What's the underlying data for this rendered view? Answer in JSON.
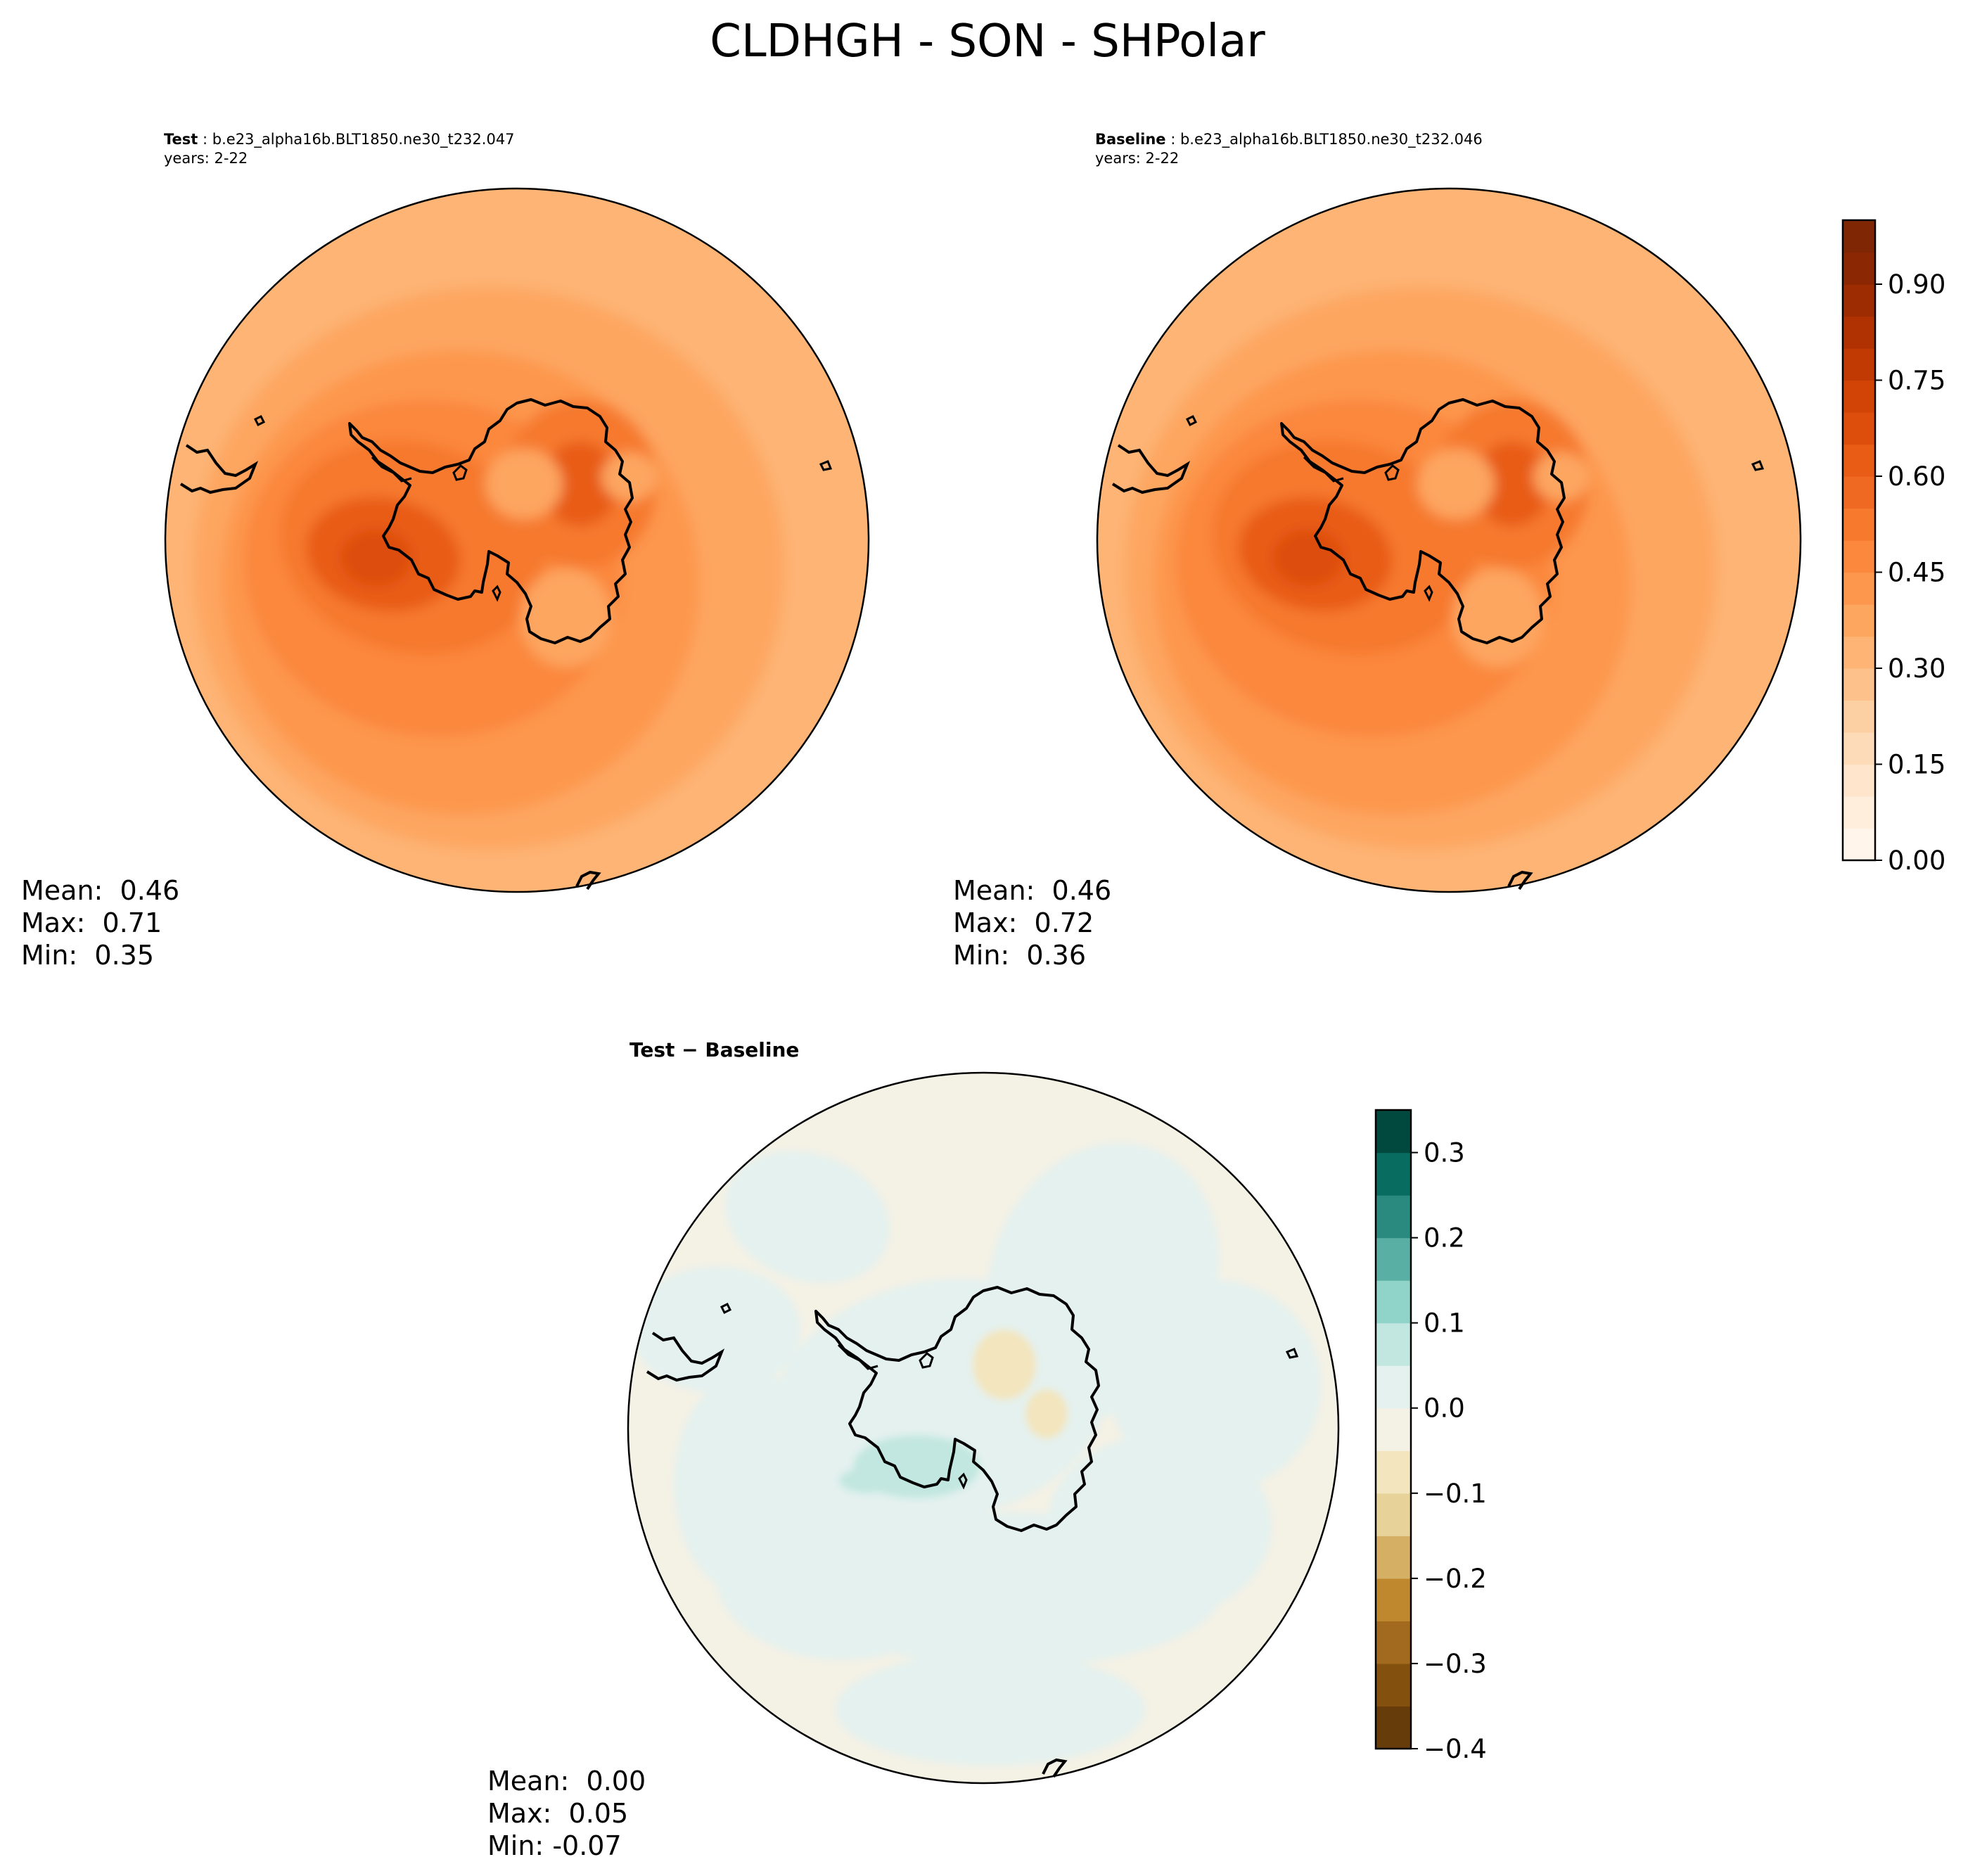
{
  "figure_title": "CLDHGH - SON - SHPolar",
  "panels": {
    "test": {
      "label": "Test",
      "case": "b.e23_alpha16b.BLT1850.ne30_t232.047",
      "years": "years: 2-22",
      "mean_label": "Mean:",
      "mean": "0.46",
      "max_label": "Max:",
      "max": "0.71",
      "min_label": "Min:",
      "min": "0.35"
    },
    "baseline": {
      "label": "Baseline",
      "case": "b.e23_alpha16b.BLT1850.ne30_t232.046",
      "years": "years: 2-22",
      "mean_label": "Mean:",
      "mean": "0.46",
      "max_label": "Max:",
      "max": "0.72",
      "min_label": "Min:",
      "min": "0.36"
    },
    "diff": {
      "label": "Test − Baseline",
      "mean_label": "Mean:",
      "mean": "0.00",
      "max_label": "Max:",
      "max": "0.05",
      "min_label": "Min:",
      "min": "-0.07"
    }
  },
  "chart_data": [
    {
      "type": "heatmap",
      "title": "Test",
      "projection": "South polar stereographic",
      "colormap": "Oranges",
      "range": [
        0.0,
        1.0
      ],
      "levels": 20,
      "colorbar_ticks": [
        "0.00",
        "0.15",
        "0.30",
        "0.45",
        "0.60",
        "0.75",
        "0.90"
      ],
      "colorbar_values": [
        0.0,
        0.15,
        0.3,
        0.45,
        0.6,
        0.75,
        0.9
      ],
      "stats": {
        "mean": 0.46,
        "max": 0.71,
        "min": 0.35
      }
    },
    {
      "type": "heatmap",
      "title": "Baseline",
      "projection": "South polar stereographic",
      "colormap": "Oranges",
      "range": [
        0.0,
        1.0
      ],
      "levels": 20,
      "stats": {
        "mean": 0.46,
        "max": 0.72,
        "min": 0.36
      }
    },
    {
      "type": "heatmap",
      "title": "Test − Baseline",
      "projection": "South polar stereographic",
      "colormap": "BrBG",
      "range": [
        -0.4,
        0.35
      ],
      "levels": 15,
      "colorbar_ticks": [
        "−0.4",
        "−0.3",
        "−0.2",
        "−0.1",
        "0.0",
        "0.1",
        "0.2",
        "0.3"
      ],
      "colorbar_values": [
        -0.4,
        -0.3,
        -0.2,
        -0.1,
        0.0,
        0.1,
        0.2,
        0.3
      ],
      "stats": {
        "mean": 0.0,
        "max": 0.05,
        "min": -0.07
      }
    }
  ],
  "colors": {
    "oranges": [
      "#fff5eb",
      "#feeedb",
      "#fee5cb",
      "#fddbb8",
      "#fdd0a3",
      "#fdc28b",
      "#fdb474",
      "#fda660",
      "#fd974d",
      "#fb883d",
      "#f6792e",
      "#f06923",
      "#e85c15",
      "#dd4e0c",
      "#d14406",
      "#c23a03",
      "#b03203",
      "#9e2c03",
      "#8b2703",
      "#7f2704"
    ],
    "brbg": [
      "#663c0a",
      "#83500d",
      "#a16a1e",
      "#bf882f",
      "#d5b064",
      "#e7d29a",
      "#f3e5bd",
      "#f4f1e5",
      "#e4f1ee",
      "#c2e7e0",
      "#90d3c8",
      "#5aafa4",
      "#2a8a80",
      "#086c61",
      "#01493e"
    ]
  }
}
